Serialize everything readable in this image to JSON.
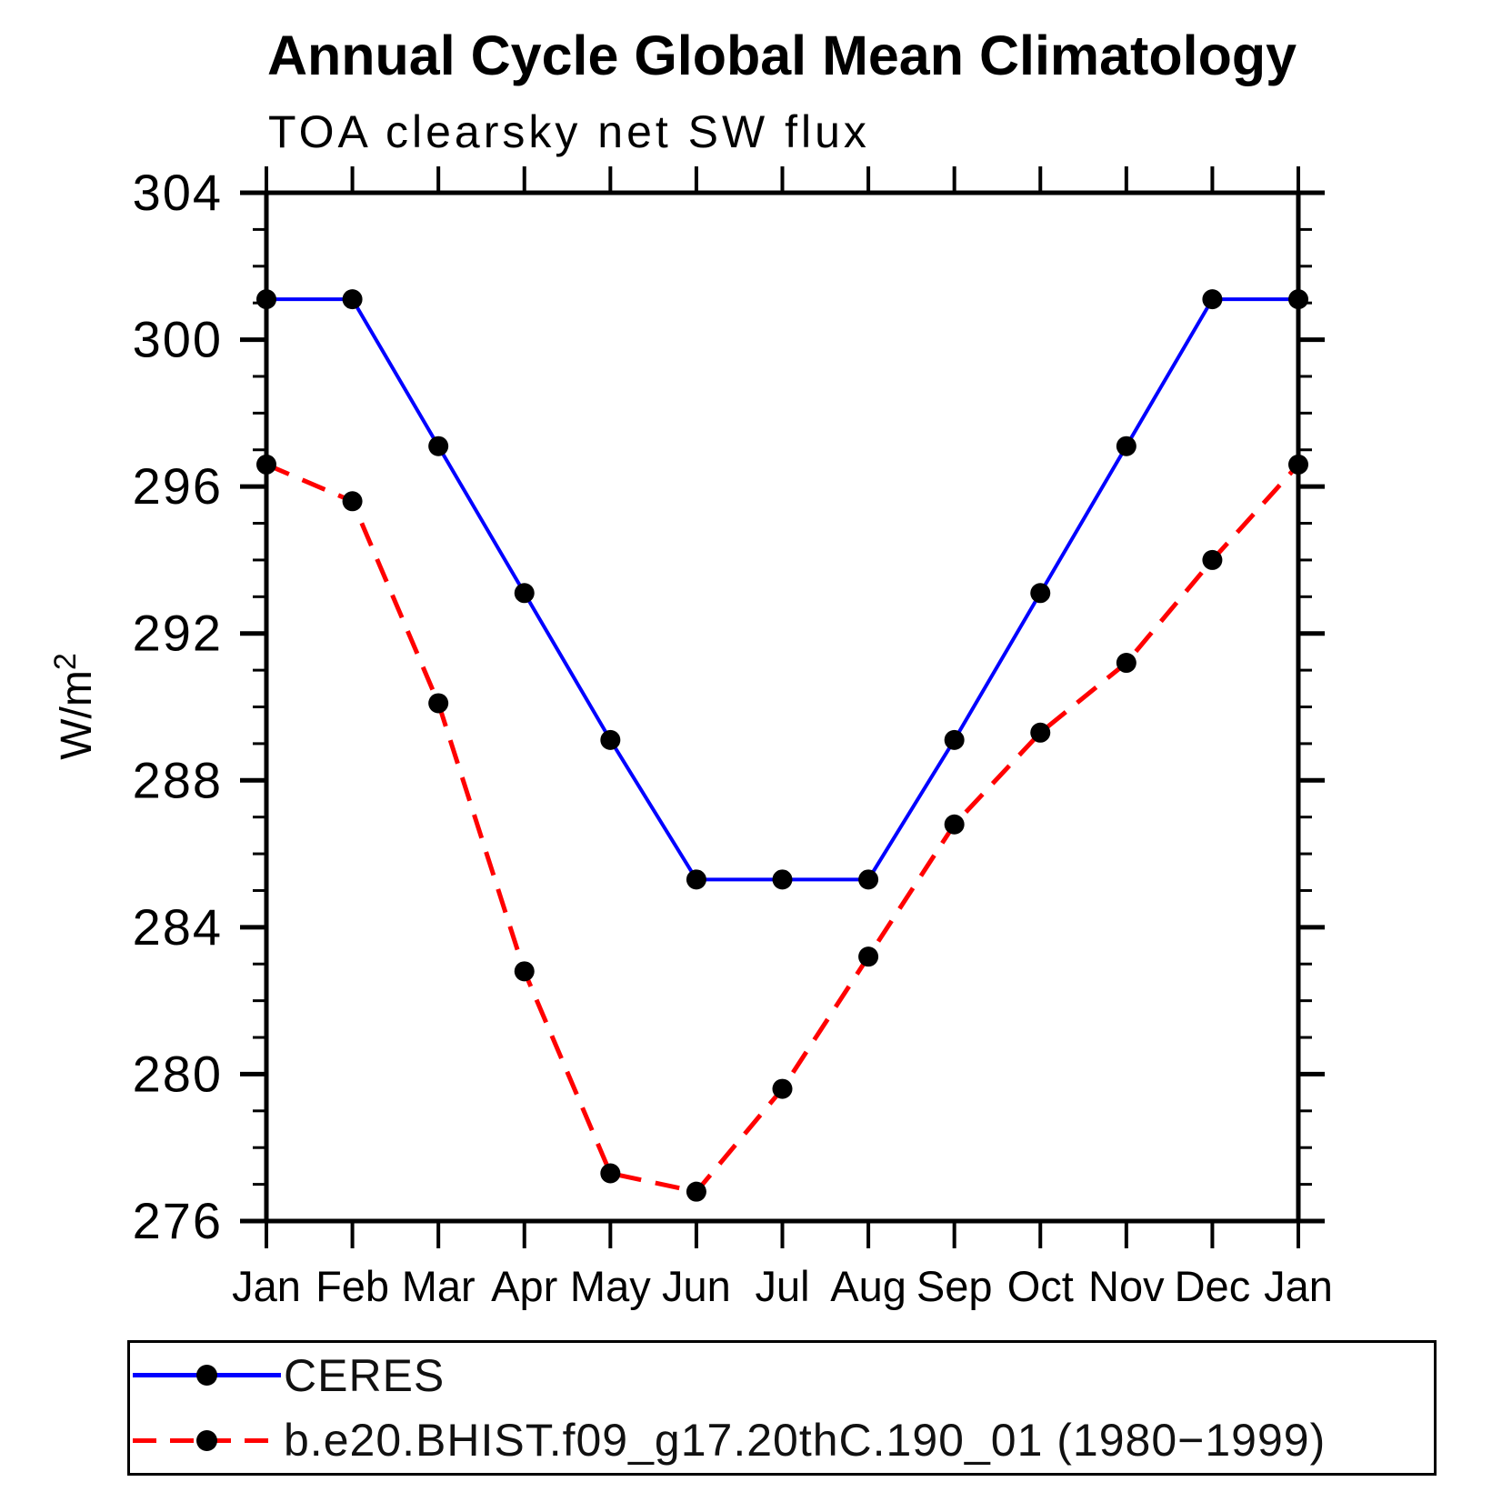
{
  "chart_data": {
    "type": "line",
    "title": "Annual Cycle Global Mean Climatology",
    "subtitle": "TOA clearsky net SW flux",
    "ylabel": "W/m²",
    "ylabel_base": "W/m",
    "ylabel_sup": "2",
    "xlabel": "",
    "categories": [
      "Jan",
      "Feb",
      "Mar",
      "Apr",
      "May",
      "Jun",
      "Jul",
      "Aug",
      "Sep",
      "Oct",
      "Nov",
      "Dec",
      "Jan"
    ],
    "ylim": [
      276,
      304
    ],
    "yticks": {
      "major_step": 4,
      "minor_step": 1
    },
    "ytick_labels": [
      "276",
      "280",
      "284",
      "288",
      "292",
      "296",
      "300",
      "304"
    ],
    "grid": false,
    "legend_position": "bottom-left-box",
    "background_color": "#ffffff",
    "axis_color": "#000000",
    "marker_color": "#000000",
    "series": [
      {
        "name": "CERES",
        "color": "#0000ff",
        "style": "solid",
        "marker": "filled-circle",
        "values": [
          301.1,
          301.1,
          297.1,
          293.1,
          289.1,
          285.3,
          285.3,
          285.3,
          289.1,
          293.1,
          297.1,
          301.1,
          301.1
        ]
      },
      {
        "name": "b.e20.BHIST.f09_g17.20thC.190_01 (1980−1999)",
        "color": "#ff0000",
        "style": "dashed",
        "marker": "filled-circle",
        "values": [
          296.6,
          295.6,
          290.1,
          282.8,
          277.3,
          276.8,
          279.6,
          283.2,
          286.8,
          289.3,
          291.2,
          294.0,
          296.6
        ]
      }
    ]
  }
}
